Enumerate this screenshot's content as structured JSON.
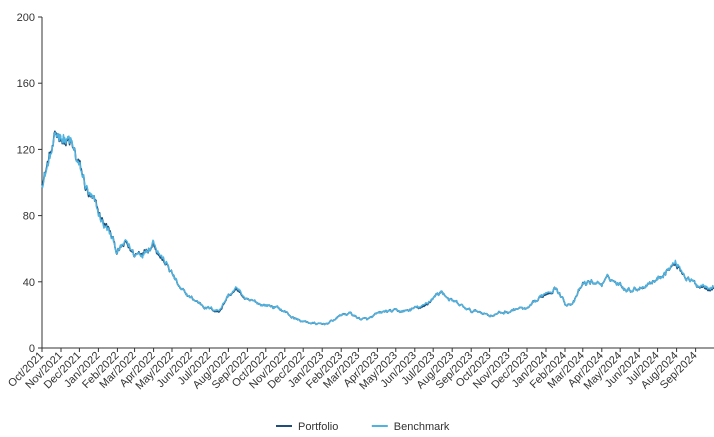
{
  "chart_data": {
    "type": "line",
    "title": "",
    "xlabel": "",
    "ylabel": "",
    "ylim": [
      0,
      200
    ],
    "y_ticks": [
      0,
      40,
      80,
      120,
      160,
      200
    ],
    "x_ticks": [
      "Oct/2021",
      "Nov/2021",
      "Dec/2021",
      "Jan/2022",
      "Feb/2022",
      "Mar/2022",
      "Apr/2022",
      "May/2022",
      "Jun/2022",
      "Jul/2022",
      "Aug/2022",
      "Sep/2022",
      "Oct/2022",
      "Nov/2022",
      "Dec/2022",
      "Jan/2023",
      "Feb/2023",
      "Mar/2023",
      "Apr/2023",
      "May/2023",
      "Jun/2023",
      "Jul/2023",
      "Aug/2023",
      "Sep/2023",
      "Oct/2023",
      "Nov/2023",
      "Dec/2023",
      "Jan/2024",
      "Feb/2024",
      "Mar/2024",
      "Apr/2024",
      "May/2024",
      "Jun/2024",
      "Jul/2024",
      "Aug/2024",
      "Sep/2024"
    ],
    "grid": false,
    "legend_position": "bottom-center",
    "x": [
      "2021-10-01",
      "2021-10-16",
      "2021-11-01",
      "2021-11-16",
      "2021-12-01",
      "2021-12-16",
      "2022-01-01",
      "2022-01-16",
      "2022-02-01",
      "2022-02-16",
      "2022-03-01",
      "2022-03-16",
      "2022-04-01",
      "2022-04-16",
      "2022-05-01",
      "2022-05-16",
      "2022-06-01",
      "2022-06-16",
      "2022-07-01",
      "2022-07-16",
      "2022-08-01",
      "2022-08-16",
      "2022-09-01",
      "2022-09-16",
      "2022-10-01",
      "2022-10-16",
      "2022-11-01",
      "2022-11-16",
      "2022-12-01",
      "2022-12-16",
      "2023-01-01",
      "2023-01-16",
      "2023-02-01",
      "2023-02-16",
      "2023-03-01",
      "2023-03-16",
      "2023-04-01",
      "2023-04-16",
      "2023-05-01",
      "2023-05-16",
      "2023-06-01",
      "2023-06-16",
      "2023-07-01",
      "2023-07-16",
      "2023-08-01",
      "2023-08-16",
      "2023-09-01",
      "2023-09-16",
      "2023-10-01",
      "2023-10-16",
      "2023-11-01",
      "2023-11-16",
      "2023-12-01",
      "2023-12-16",
      "2024-01-01",
      "2024-01-16",
      "2024-02-01",
      "2024-02-16",
      "2024-03-01",
      "2024-03-16",
      "2024-04-01",
      "2024-04-16",
      "2024-05-01",
      "2024-05-16",
      "2024-06-01",
      "2024-06-16",
      "2024-07-01",
      "2024-07-16",
      "2024-08-01",
      "2024-08-16",
      "2024-09-01",
      "2024-09-16",
      "2024-09-30"
    ],
    "series": [
      {
        "name": "Portfolio",
        "color": "#1f4e79",
        "values": [
          102,
          118,
          130,
          122,
          108,
          92,
          80,
          72,
          58,
          62,
          56,
          60,
          66,
          54,
          45,
          34,
          30,
          27,
          24,
          22,
          32,
          35,
          28,
          27,
          26,
          25,
          22,
          18,
          16,
          15,
          14,
          16,
          20,
          21,
          18,
          17,
          20,
          22,
          22,
          22,
          24,
          24,
          31,
          34,
          28,
          25,
          22,
          22,
          20,
          21,
          22,
          24,
          23,
          27,
          33,
          38,
          27,
          28,
          38,
          40,
          39,
          42,
          38,
          36,
          37,
          40,
          42,
          48,
          51,
          44,
          38,
          38,
          38
        ]
      },
      {
        "name": "Benchmark",
        "color": "#4fb3e0",
        "values": [
          101,
          117,
          131,
          123,
          107,
          93,
          79,
          71,
          58,
          63,
          56,
          59,
          67,
          55,
          45,
          34,
          30,
          27,
          24,
          23,
          32,
          36,
          28,
          27,
          26,
          25,
          22,
          18,
          16,
          15,
          14,
          16,
          20,
          21,
          18,
          17,
          20,
          22,
          22,
          22,
          24,
          25,
          31,
          34,
          28,
          25,
          22,
          22,
          20,
          21,
          22,
          24,
          23,
          27,
          34,
          38,
          27,
          28,
          38,
          40,
          39,
          42,
          38,
          36,
          37,
          40,
          42,
          48,
          52,
          44,
          38,
          39,
          39
        ]
      }
    ]
  }
}
